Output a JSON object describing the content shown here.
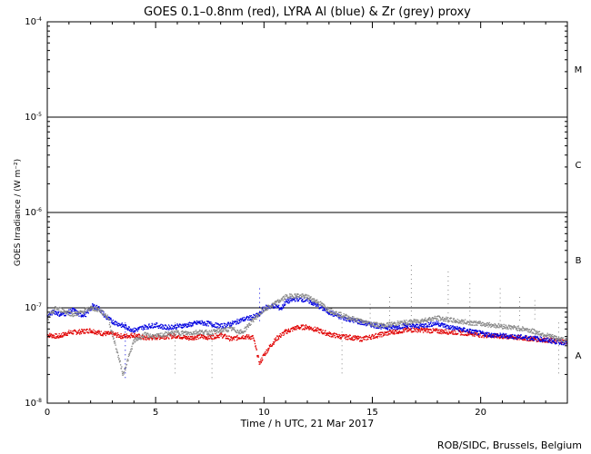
{
  "chart_data": {
    "type": "scatter",
    "title": "GOES 0.1–0.8nm (red), LYRA Al (blue) & Zr (grey) proxy",
    "xlabel": "Time / h UTC, 21 Mar 2017",
    "ylabel": "GOES Irradiance / (W m⁻²)",
    "xlim": [
      0,
      24
    ],
    "ylim": [
      1e-08,
      0.0001
    ],
    "yscale": "log",
    "x_ticks": [
      0,
      5,
      10,
      15,
      20
    ],
    "y_ticks": [
      {
        "base": "10",
        "exp": "-4",
        "value": 0.0001
      },
      {
        "base": "10",
        "exp": "-5",
        "value": 1e-05
      },
      {
        "base": "10",
        "exp": "-6",
        "value": 1e-06
      },
      {
        "base": "10",
        "exp": "-7",
        "value": 1e-07
      },
      {
        "base": "10",
        "exp": "-8",
        "value": 1e-08
      }
    ],
    "flare_levels": [
      1e-05,
      1e-06,
      1e-07
    ],
    "flare_classes": [
      {
        "label": "M",
        "value": 3.2e-05
      },
      {
        "label": "C",
        "value": 3.2e-06
      },
      {
        "label": "B",
        "value": 3.2e-07
      },
      {
        "label": "A",
        "value": 3.2e-08
      }
    ],
    "series": [
      {
        "color": "#e00000",
        "x": [
          0.0,
          0.5,
          1.0,
          1.5,
          2.0,
          2.5,
          3.0,
          3.5,
          4.0,
          4.5,
          5.0,
          5.5,
          6.0,
          6.5,
          7.0,
          7.5,
          8.0,
          8.5,
          9.0,
          9.5,
          9.8,
          10.0,
          10.3,
          10.6,
          11.0,
          11.5,
          12.0,
          12.5,
          13.0,
          13.5,
          14.0,
          14.5,
          15.0,
          15.5,
          16.0,
          16.5,
          17.0,
          17.5,
          18.0,
          18.5,
          19.0,
          19.5,
          20.0,
          20.5,
          21.0,
          21.5,
          22.0,
          22.5,
          23.0,
          23.5,
          24.0
        ],
        "y": [
          5.2e-08,
          5e-08,
          5.5e-08,
          5.6e-08,
          5.8e-08,
          5.4e-08,
          5.3e-08,
          5e-08,
          5.2e-08,
          4.8e-08,
          4.9e-08,
          5e-08,
          5.1e-08,
          4.8e-08,
          5e-08,
          4.9e-08,
          5.2e-08,
          4.7e-08,
          5e-08,
          4.9e-08,
          2.6e-08,
          3.2e-08,
          4e-08,
          4.8e-08,
          5.6e-08,
          6.2e-08,
          6.3e-08,
          5.8e-08,
          5.3e-08,
          5e-08,
          4.9e-08,
          4.7e-08,
          5e-08,
          5.3e-08,
          5.6e-08,
          5.8e-08,
          5.9e-08,
          5.8e-08,
          5.7e-08,
          5.6e-08,
          5.5e-08,
          5.4e-08,
          5.2e-08,
          5.1e-08,
          5e-08,
          4.9e-08,
          4.8e-08,
          4.7e-08,
          4.6e-08,
          4.5e-08,
          4.4e-08
        ]
      },
      {
        "color": "#0000e0",
        "x": [
          0.0,
          0.3,
          0.6,
          0.9,
          1.2,
          1.5,
          1.8,
          2.1,
          2.4,
          2.7,
          3.0,
          4.0,
          4.5,
          5.0,
          5.5,
          6.0,
          6.5,
          7.0,
          7.5,
          8.0,
          8.5,
          9.0,
          9.5,
          9.8,
          10.0,
          10.5,
          10.8,
          11.0,
          11.5,
          12.0,
          12.5,
          13.0,
          13.5,
          14.0,
          14.5,
          15.0,
          15.5,
          16.0,
          16.5,
          17.0,
          17.5,
          18.0,
          18.5,
          19.0,
          19.5,
          20.0,
          20.5,
          21.0,
          21.5,
          22.0,
          22.5,
          23.0,
          23.5,
          24.0
        ],
        "y": [
          8e-08,
          9.2e-08,
          8.5e-08,
          8.8e-08,
          9.5e-08,
          8.4e-08,
          8.6e-08,
          1.05e-07,
          9.8e-08,
          8e-08,
          7.2e-08,
          5.8e-08,
          6.3e-08,
          6.6e-08,
          6.2e-08,
          6.4e-08,
          6.6e-08,
          7e-08,
          6.8e-08,
          6.4e-08,
          6.8e-08,
          7.5e-08,
          8e-08,
          8.5e-08,
          1e-07,
          1.05e-07,
          9.8e-08,
          1.15e-07,
          1.25e-07,
          1.2e-07,
          1.05e-07,
          9e-08,
          8e-08,
          7.5e-08,
          7e-08,
          6.6e-08,
          6.3e-08,
          6.2e-08,
          6.5e-08,
          6.4e-08,
          6.6e-08,
          6.9e-08,
          6.3e-08,
          6e-08,
          5.7e-08,
          5.4e-08,
          5.2e-08,
          5.1e-08,
          5e-08,
          4.9e-08,
          4.8e-08,
          4.6e-08,
          4.4e-08,
          4.3e-08
        ]
      },
      {
        "color": "#888888",
        "x": [
          0.0,
          0.4,
          0.8,
          1.2,
          1.6,
          2.0,
          2.4,
          2.8,
          3.5,
          4.0,
          4.5,
          5.0,
          5.5,
          6.0,
          6.5,
          7.0,
          7.5,
          8.0,
          8.5,
          9.0,
          9.5,
          10.0,
          10.5,
          11.0,
          11.5,
          12.0,
          12.5,
          13.0,
          13.5,
          14.0,
          14.5,
          15.0,
          15.5,
          16.0,
          16.5,
          17.0,
          17.5,
          18.0,
          18.5,
          19.0,
          19.5,
          20.0,
          20.5,
          21.0,
          21.5,
          22.0,
          22.5,
          23.0,
          23.5,
          24.0
        ],
        "y": [
          7.5e-08,
          1e-07,
          9.2e-08,
          8.5e-08,
          9e-08,
          1e-07,
          9.5e-08,
          8e-08,
          2e-08,
          4.5e-08,
          5.2e-08,
          5e-08,
          5.3e-08,
          5.5e-08,
          5.4e-08,
          5.6e-08,
          5.5e-08,
          5.8e-08,
          6e-08,
          5.5e-08,
          7.5e-08,
          9.5e-08,
          1.1e-07,
          1.3e-07,
          1.35e-07,
          1.3e-07,
          1.15e-07,
          9.5e-08,
          8.5e-08,
          7.8e-08,
          7.2e-08,
          6.8e-08,
          6.5e-08,
          6.8e-08,
          7e-08,
          7.2e-08,
          7.5e-08,
          7.8e-08,
          7.5e-08,
          7.2e-08,
          7e-08,
          6.8e-08,
          6.6e-08,
          6.4e-08,
          6.2e-08,
          6e-08,
          5.6e-08,
          5.2e-08,
          4.8e-08,
          4.5e-08
        ]
      }
    ],
    "spikes": [
      {
        "x": 16.8,
        "y": 2.8e-07,
        "color": "#888888"
      },
      {
        "x": 18.5,
        "y": 2.4e-07,
        "color": "#888888"
      },
      {
        "x": 19.5,
        "y": 1.8e-07,
        "color": "#888888"
      },
      {
        "x": 20.9,
        "y": 1.6e-07,
        "color": "#888888"
      },
      {
        "x": 21.8,
        "y": 1.3e-07,
        "color": "#888888"
      },
      {
        "x": 22.5,
        "y": 1.2e-07,
        "color": "#888888"
      },
      {
        "x": 15.8,
        "y": 1.3e-07,
        "color": "#888888"
      },
      {
        "x": 14.9,
        "y": 1.1e-07,
        "color": "#888888"
      },
      {
        "x": 3.6,
        "y": 1.8e-08,
        "color": "#0000e0"
      },
      {
        "x": 5.9,
        "y": 1.9e-08,
        "color": "#888888"
      },
      {
        "x": 7.6,
        "y": 1.8e-08,
        "color": "#888888"
      },
      {
        "x": 13.6,
        "y": 2e-08,
        "color": "#888888"
      },
      {
        "x": 23.6,
        "y": 2e-08,
        "color": "#888888"
      },
      {
        "x": 9.8,
        "y": 1.6e-07,
        "color": "#0000e0"
      }
    ],
    "credit": "ROB/SIDC, Brussels, Belgium"
  }
}
